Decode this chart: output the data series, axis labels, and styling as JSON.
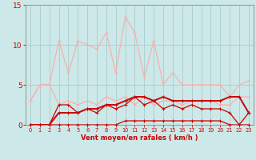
{
  "x": [
    0,
    1,
    2,
    3,
    4,
    5,
    6,
    7,
    8,
    9,
    10,
    11,
    12,
    13,
    14,
    15,
    16,
    17,
    18,
    19,
    20,
    21,
    22,
    23
  ],
  "line_max": [
    3.0,
    5.0,
    5.0,
    10.5,
    6.5,
    10.5,
    10.0,
    9.5,
    11.5,
    6.5,
    13.5,
    11.5,
    6.0,
    10.5,
    5.0,
    6.5,
    5.0,
    5.0,
    5.0,
    5.0,
    5.0,
    3.5,
    5.0,
    5.5
  ],
  "line_med": [
    3.0,
    5.0,
    5.0,
    2.5,
    3.0,
    2.5,
    3.0,
    2.5,
    3.5,
    3.0,
    3.5,
    2.5,
    3.5,
    2.5,
    3.0,
    3.0,
    2.5,
    3.0,
    3.0,
    3.0,
    2.5,
    2.5,
    3.5,
    3.5
  ],
  "line_avg": [
    0.0,
    0.0,
    0.0,
    1.5,
    1.5,
    1.5,
    2.0,
    2.0,
    2.5,
    2.5,
    3.0,
    3.5,
    3.5,
    3.0,
    3.5,
    3.0,
    3.0,
    3.0,
    3.0,
    3.0,
    3.0,
    3.5,
    3.5,
    1.5
  ],
  "line_q75": [
    0.0,
    0.0,
    0.0,
    2.5,
    2.5,
    1.5,
    2.0,
    1.5,
    2.5,
    2.0,
    2.5,
    3.5,
    2.5,
    3.0,
    2.0,
    2.5,
    2.0,
    2.5,
    2.0,
    2.0,
    2.0,
    1.5,
    0.0,
    1.5
  ],
  "line_q25": [
    0.0,
    0.0,
    0.0,
    0.0,
    0.0,
    0.0,
    0.0,
    0.0,
    0.0,
    0.0,
    0.5,
    0.5,
    0.5,
    0.5,
    0.5,
    0.5,
    0.5,
    0.5,
    0.5,
    0.5,
    0.5,
    0.0,
    0.0,
    0.0
  ],
  "xlabel": "Vent moyen/en rafales ( km/h )",
  "ylim": [
    0,
    15
  ],
  "xlim": [
    -0.5,
    23.5
  ],
  "bg_color": "#cce8e8",
  "grid_color": "#aacccc",
  "line_max_color": "#ffaaaa",
  "line_med_color": "#ffaaaa",
  "line_avg_color": "#cc0000",
  "line_q75_color": "#cc0000",
  "line_q25_color": "#cc0000",
  "tick_color": "#cc0000",
  "label_color": "#cc0000",
  "spine_color": "#888888"
}
